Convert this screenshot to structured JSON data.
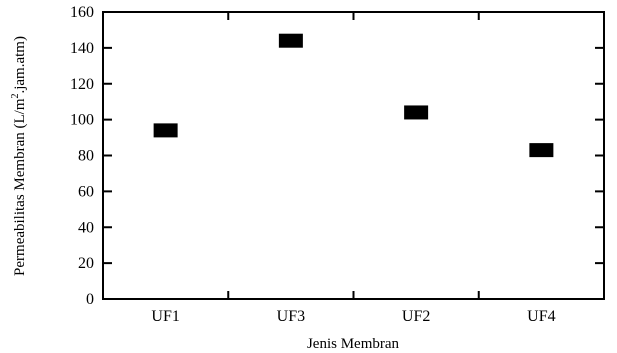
{
  "chart_data": {
    "type": "scatter",
    "title": "",
    "xlabel": "Jenis Membran",
    "ylabel_main": "Permeabilitas Membran (L/m",
    "ylabel_sup": "2",
    "ylabel_tail": ".jam.atm)",
    "categories": [
      "UF1",
      "UF3",
      "UF2",
      "UF4"
    ],
    "values": [
      94,
      144,
      104,
      83
    ],
    "ylim": [
      0,
      160
    ],
    "yticks": [
      "0",
      "20",
      "40",
      "60",
      "80",
      "100",
      "120",
      "140",
      "160"
    ],
    "grid": false,
    "marker": "square",
    "marker_color": "#000000"
  }
}
